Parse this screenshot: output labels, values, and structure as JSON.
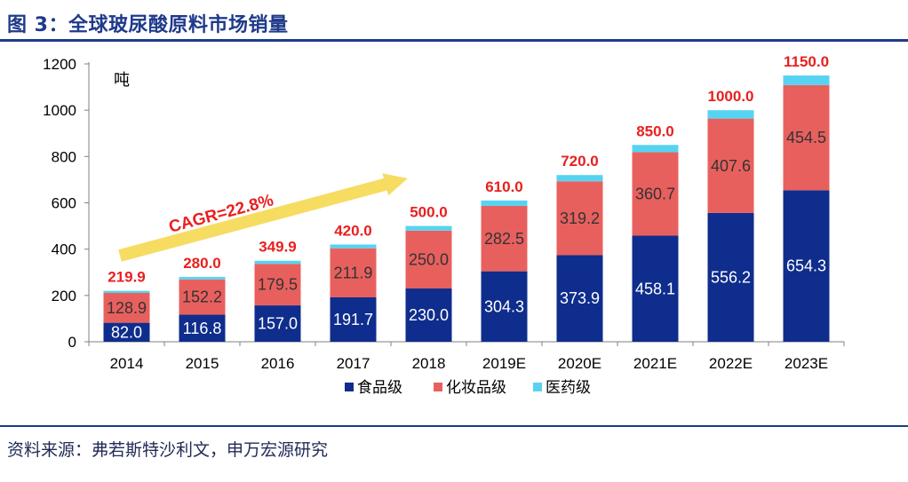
{
  "header": {
    "title": "图 3：全球玻尿酸原料市场销量"
  },
  "footer": {
    "source": "资料来源：弗若斯特沙利文，申万宏源研究"
  },
  "chart_data": {
    "type": "bar",
    "stacked": true,
    "title": "",
    "unit_label": "吨",
    "ylim": [
      0,
      1200
    ],
    "yticks": [
      0,
      200,
      400,
      600,
      800,
      1000,
      1200
    ],
    "categories": [
      "2014",
      "2015",
      "2016",
      "2017",
      "2018",
      "2019E",
      "2020E",
      "2021E",
      "2022E",
      "2023E"
    ],
    "series": [
      {
        "name": "食品级",
        "color": "#0f2d8c",
        "label_color": "#ffffff",
        "values": [
          82.0,
          116.8,
          157.0,
          191.7,
          230.0,
          304.3,
          373.9,
          458.1,
          556.2,
          654.3
        ],
        "labels": [
          "82.0",
          "116.8",
          "157.0",
          "191.7",
          "230.0",
          "304.3",
          "373.9",
          "458.1",
          "556.2",
          "654.3"
        ]
      },
      {
        "name": "化妆品级",
        "color": "#e8605e",
        "label_color": "#333333",
        "values": [
          128.9,
          152.2,
          179.5,
          211.9,
          250.0,
          282.5,
          319.2,
          360.7,
          407.6,
          454.5
        ],
        "labels": [
          "128.9",
          "152.2",
          "179.5",
          "211.9",
          "250.0",
          "282.5",
          "319.2",
          "360.7",
          "407.6",
          "454.5"
        ]
      },
      {
        "name": "医药级",
        "color": "#57d3f2",
        "values": [
          9.0,
          11.0,
          13.4,
          16.4,
          20.0,
          23.2,
          26.9,
          31.2,
          36.2,
          41.2
        ]
      }
    ],
    "totals": [
      219.9,
      280.0,
      349.9,
      420.0,
      500.0,
      610.0,
      720.0,
      850.0,
      1000.0,
      1150.0
    ],
    "total_labels": [
      "219.9",
      "280.0",
      "349.9",
      "420.0",
      "500.0",
      "610.0",
      "720.0",
      "850.0",
      "1000.0",
      "1150.0"
    ],
    "annotation": {
      "text": "CAGR=22.8%",
      "arrow_color": "#f7dc62",
      "text_color": "#e8201f"
    },
    "legend_position": "bottom"
  }
}
